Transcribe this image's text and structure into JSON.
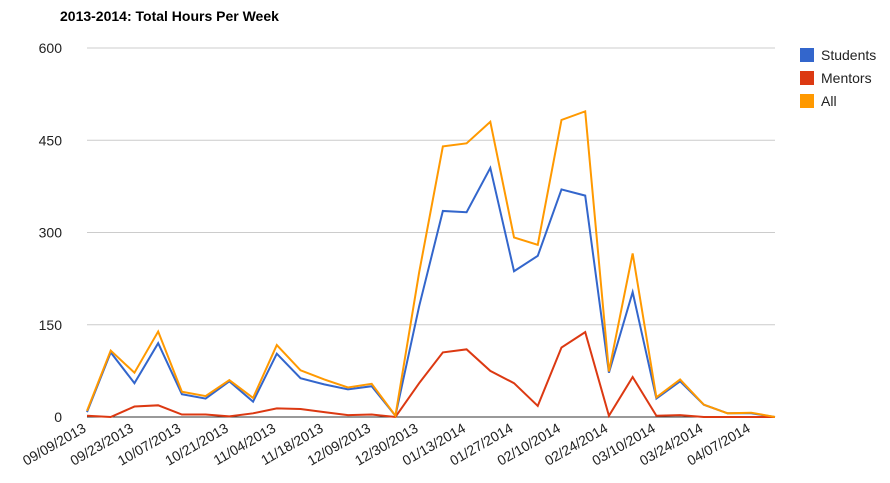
{
  "chart_data": {
    "type": "line",
    "title": "2013-2014: Total Hours Per Week",
    "categories": [
      "09/09/2013",
      null,
      "09/23/2013",
      null,
      "10/07/2013",
      null,
      "10/21/2013",
      null,
      "11/04/2013",
      null,
      "11/18/2013",
      null,
      "12/09/2013",
      null,
      "12/30/2013",
      null,
      "01/13/2014",
      null,
      "01/27/2014",
      null,
      "02/10/2014",
      null,
      "02/24/2014",
      null,
      "03/10/2014",
      null,
      "03/24/2014",
      null,
      "04/07/2014",
      null
    ],
    "series": [
      {
        "name": "Students",
        "color": "#3366cc",
        "values": [
          8,
          105,
          55,
          120,
          37,
          30,
          58,
          25,
          103,
          63,
          53,
          45,
          50,
          2,
          180,
          335,
          333,
          405,
          237,
          262,
          370,
          360,
          72,
          203,
          30,
          58,
          20,
          6,
          6,
          0
        ]
      },
      {
        "name": "Mentors",
        "color": "#dc3912",
        "values": [
          2,
          0,
          17,
          19,
          4,
          4,
          1,
          6,
          14,
          13,
          8,
          3,
          4,
          0,
          55,
          105,
          110,
          75,
          55,
          18,
          113,
          138,
          2,
          65,
          2,
          3,
          0,
          0,
          0,
          0
        ]
      },
      {
        "name": "All",
        "color": "#ff9900",
        "values": [
          10,
          108,
          72,
          139,
          41,
          34,
          60,
          31,
          117,
          76,
          61,
          48,
          54,
          2,
          235,
          440,
          445,
          480,
          292,
          280,
          483,
          497,
          74,
          266,
          32,
          61,
          20,
          6,
          7,
          0
        ]
      }
    ],
    "ylim": [
      0,
      600
    ],
    "yticks": [
      0,
      150,
      300,
      450,
      600
    ],
    "grid": true,
    "legend": "right"
  }
}
